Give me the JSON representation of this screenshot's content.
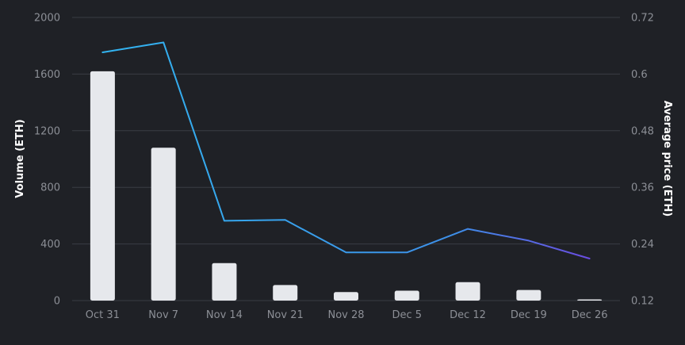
{
  "chart_data": {
    "type": "bar+line",
    "categories": [
      "Oct 31",
      "Nov 7",
      "Nov 14",
      "Nov 21",
      "Nov 28",
      "Dec 5",
      "Dec 12",
      "Dec 19",
      "Dec 26"
    ],
    "series": [
      {
        "name": "Volume (ETH)",
        "type": "bar",
        "axis": "left",
        "values": [
          1620,
          1080,
          265,
          110,
          60,
          70,
          130,
          75,
          8
        ],
        "color": "#e6e8ec"
      },
      {
        "name": "Average price (ETH)",
        "type": "line",
        "axis": "right",
        "values": [
          0.646,
          0.667,
          0.289,
          0.291,
          0.222,
          0.222,
          0.272,
          0.247,
          0.209
        ],
        "color_start": "#32b4f0",
        "color_end": "#6a4ce0"
      }
    ],
    "y_left": {
      "label": "Volume (ETH)",
      "range": [
        0,
        2000
      ],
      "ticks": [
        "0",
        "400",
        "800",
        "1200",
        "1600",
        "2000"
      ]
    },
    "y_right": {
      "label": "Average price (ETH)",
      "range": [
        0.12,
        0.72
      ],
      "ticks": [
        "0.12",
        "0.24",
        "0.36",
        "0.48",
        "0.6",
        "0.72"
      ]
    },
    "grid": true,
    "legend": "none"
  }
}
